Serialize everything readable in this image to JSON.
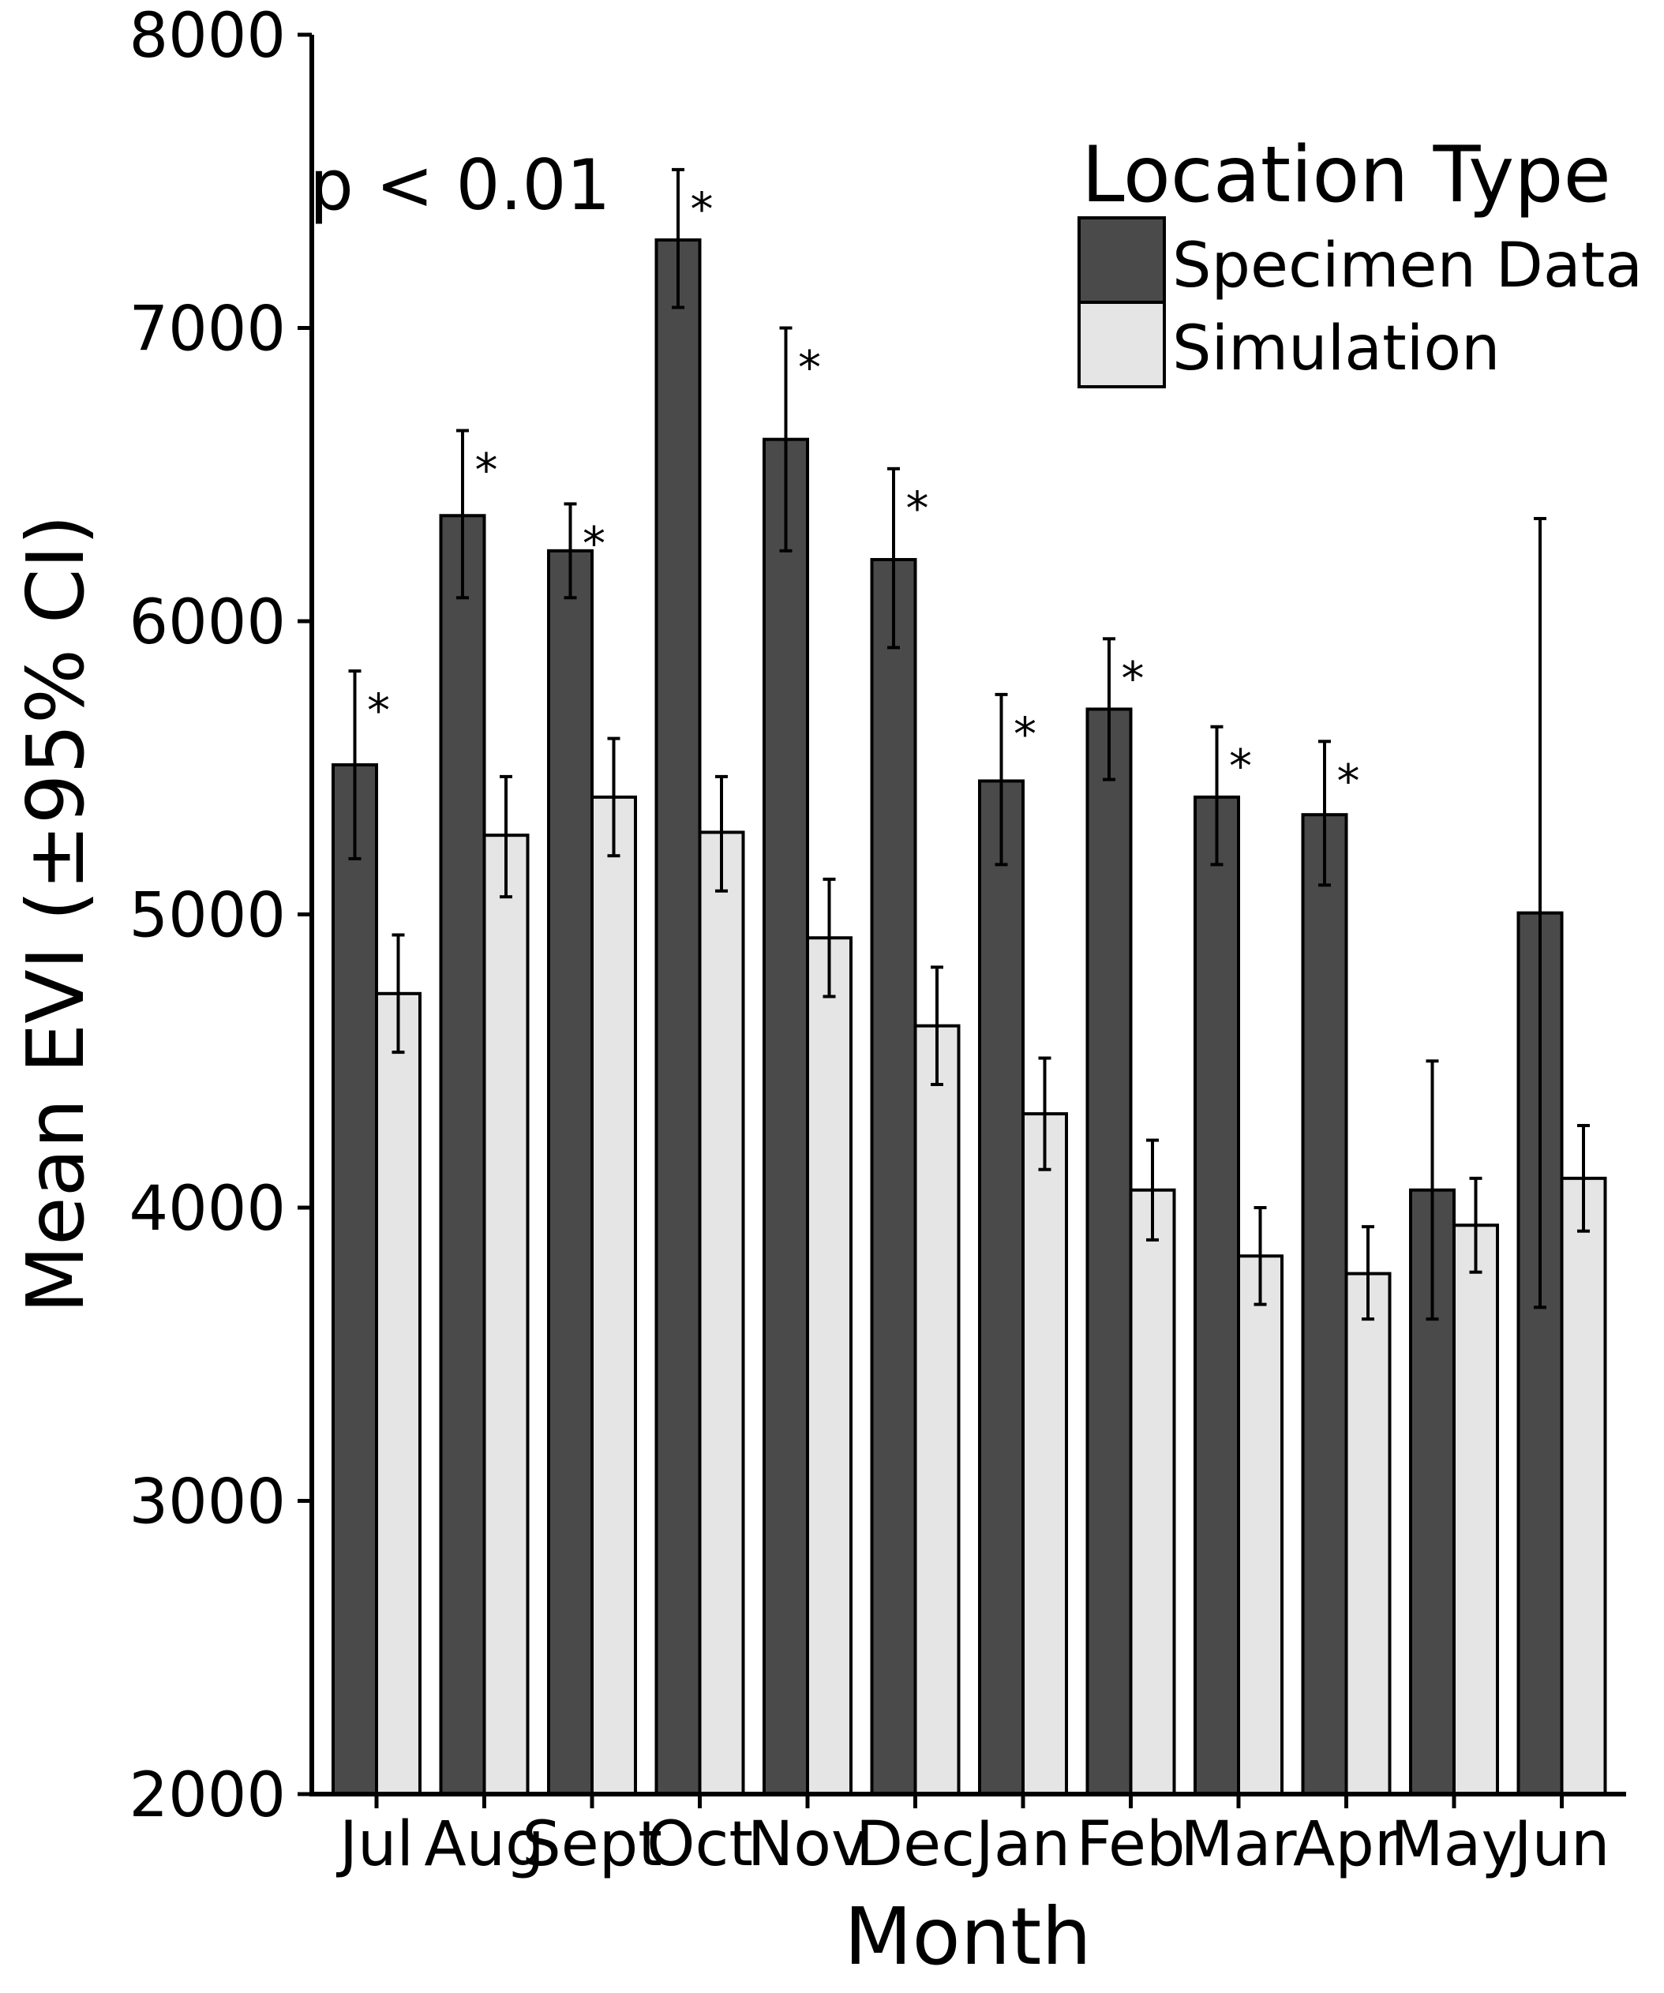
{
  "chart_data": {
    "type": "bar",
    "xlabel": "Month",
    "ylabel": "Mean EVI (±95% CI)",
    "annotation": "p < 0.01",
    "significance_marker": "*",
    "ylim": [
      2000,
      8000
    ],
    "yticks": [
      "2000",
      "3000",
      "4000",
      "5000",
      "6000",
      "7000",
      "8000"
    ],
    "grid": false,
    "legend": {
      "title": "Location Type",
      "placement": "top-right",
      "entries": [
        "Specimen Data",
        "Simulation"
      ]
    },
    "colors": {
      "Specimen Data": "#4a4a4a",
      "Simulation": "#e5e5e5"
    },
    "categories": [
      "Jul",
      "Aug",
      "Sept",
      "Oct",
      "Nov",
      "Dec",
      "Jan",
      "Feb",
      "Mar",
      "Apr",
      "May",
      "Jun"
    ],
    "series": [
      {
        "name": "Specimen Data",
        "values": [
          5510,
          6360,
          6240,
          7300,
          6620,
          6210,
          5455,
          5700,
          5400,
          5340,
          4060,
          5005
        ],
        "ci_low": [
          5190,
          6080,
          6080,
          7070,
          6240,
          5910,
          5170,
          5460,
          5170,
          5100,
          3620,
          3660
        ],
        "ci_high": [
          5830,
          6650,
          6400,
          7540,
          7000,
          6520,
          5750,
          5940,
          5640,
          5590,
          4500,
          6350
        ],
        "significant": [
          true,
          true,
          true,
          true,
          true,
          true,
          true,
          true,
          true,
          true,
          false,
          false
        ]
      },
      {
        "name": "Simulation",
        "values": [
          4730,
          5270,
          5400,
          5280,
          4920,
          4620,
          4320,
          4060,
          3835,
          3775,
          3940,
          4100
        ],
        "ci_low": [
          4530,
          5060,
          5200,
          5080,
          4720,
          4420,
          4130,
          3890,
          3670,
          3620,
          3780,
          3920
        ],
        "ci_high": [
          4930,
          5470,
          5600,
          5470,
          5120,
          4820,
          4510,
          4230,
          4000,
          3935,
          4100,
          4280
        ]
      }
    ]
  }
}
